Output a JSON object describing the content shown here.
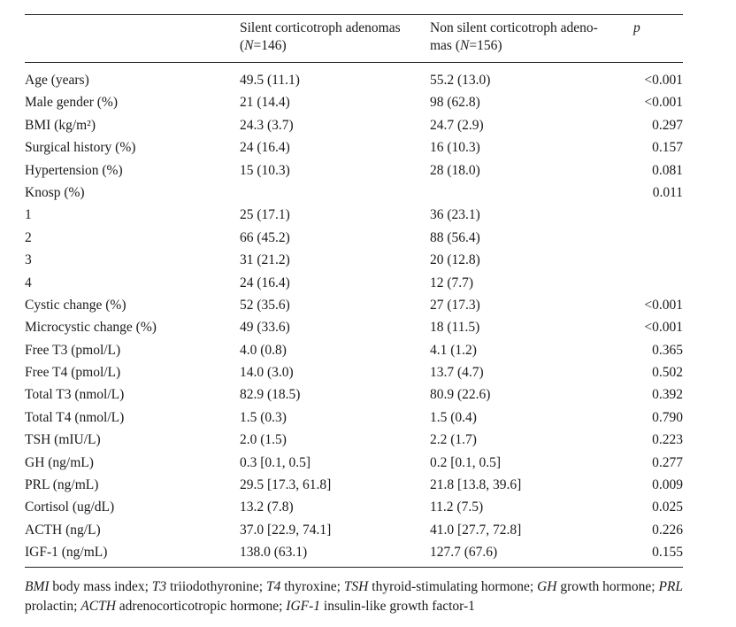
{
  "header": {
    "col_variable": "",
    "col_silent": "Silent corticotroph adenomas",
    "col_silent_n_prefix": "(",
    "col_silent_n_italic": "N",
    "col_silent_n_rest": "=146)",
    "col_nonsilent": "Non silent corticotroph adeno-",
    "col_nonsilent_line2": "mas (",
    "col_nonsilent_n_italic": "N",
    "col_nonsilent_n_rest": "=156)",
    "col_p": "p"
  },
  "rows": [
    {
      "label": "Age (years)",
      "silent": "49.5 (11.1)",
      "nonsilent": "55.2 (13.0)",
      "p": "<0.001"
    },
    {
      "label": "Male gender (%)",
      "silent": "21 (14.4)",
      "nonsilent": "98 (62.8)",
      "p": "<0.001"
    },
    {
      "label": "BMI (kg/m²)",
      "silent": "24.3 (3.7)",
      "nonsilent": "24.7 (2.9)",
      "p": "0.297"
    },
    {
      "label": "Surgical history (%)",
      "silent": "24 (16.4)",
      "nonsilent": "16 (10.3)",
      "p": "0.157"
    },
    {
      "label": "Hypertension (%)",
      "silent": "15 (10.3)",
      "nonsilent": "28 (18.0)",
      "p": "0.081"
    },
    {
      "label": "Knosp (%)",
      "silent": "",
      "nonsilent": "",
      "p": "0.011"
    },
    {
      "label": "1",
      "silent": "25 (17.1)",
      "nonsilent": "36 (23.1)",
      "p": ""
    },
    {
      "label": "2",
      "silent": "66 (45.2)",
      "nonsilent": "88 (56.4)",
      "p": ""
    },
    {
      "label": "3",
      "silent": "31 (21.2)",
      "nonsilent": "20 (12.8)",
      "p": ""
    },
    {
      "label": " 4",
      "silent": "24 (16.4)",
      "nonsilent": "12 (7.7)",
      "p": ""
    },
    {
      "label": "Cystic change (%)",
      "silent": "52 (35.6)",
      "nonsilent": "27 (17.3)",
      "p": "<0.001"
    },
    {
      "label": "Microcystic change (%)",
      "silent": "49 (33.6)",
      "nonsilent": "18 (11.5)",
      "p": "<0.001"
    },
    {
      "label": "Free T3 (pmol/L)",
      "silent": "4.0 (0.8)",
      "nonsilent": "4.1 (1.2)",
      "p": "0.365"
    },
    {
      "label": "Free T4 (pmol/L)",
      "silent": "14.0 (3.0)",
      "nonsilent": "13.7 (4.7)",
      "p": "0.502"
    },
    {
      "label": "Total T3 (nmol/L)",
      "silent": "82.9 (18.5)",
      "nonsilent": "80.9 (22.6)",
      "p": "0.392"
    },
    {
      "label": "Total T4 (nmol/L)",
      "silent": "1.5 (0.3)",
      "nonsilent": "1.5 (0.4)",
      "p": "0.790"
    },
    {
      "label": "TSH (mIU/L)",
      "silent": "2.0 (1.5)",
      "nonsilent": "2.2 (1.7)",
      "p": "0.223"
    },
    {
      "label": "GH (ng/mL)",
      "silent": "0.3 [0.1, 0.5]",
      "nonsilent": "0.2 [0.1, 0.5]",
      "p": "0.277"
    },
    {
      "label": "PRL (ng/mL)",
      "silent": "29.5 [17.3, 61.8]",
      "nonsilent": "21.8 [13.8, 39.6]",
      "p": "0.009"
    },
    {
      "label": "Cortisol (ug/dL)",
      "silent": "13.2 (7.8)",
      "nonsilent": "11.2 (7.5)",
      "p": "0.025"
    },
    {
      "label": "ACTH (ng/L)",
      "silent": "37.0 [22.9, 74.1]",
      "nonsilent": "41.0 [27.7, 72.8]",
      "p": "0.226"
    },
    {
      "label": "IGF-1 (ng/mL)",
      "silent": "138.0 (63.1)",
      "nonsilent": "127.7 (67.6)",
      "p": "0.155"
    }
  ],
  "footnote": [
    {
      "abbr": "BMI",
      "text": " body mass index; "
    },
    {
      "abbr": "T3",
      "text": " triiodothyronine; "
    },
    {
      "abbr": "T4",
      "text": " thyroxine; "
    },
    {
      "abbr": "TSH",
      "text": " thyroid-stimulating hormone; "
    },
    {
      "abbr": "GH",
      "text": " growth hormone; "
    },
    {
      "abbr": "PRL",
      "text": " prolactin; "
    },
    {
      "abbr": "ACTH",
      "text": " adrenocorticotropic hormone; "
    },
    {
      "abbr": "IGF-1",
      "text": " insulin-like growth factor-1"
    }
  ]
}
